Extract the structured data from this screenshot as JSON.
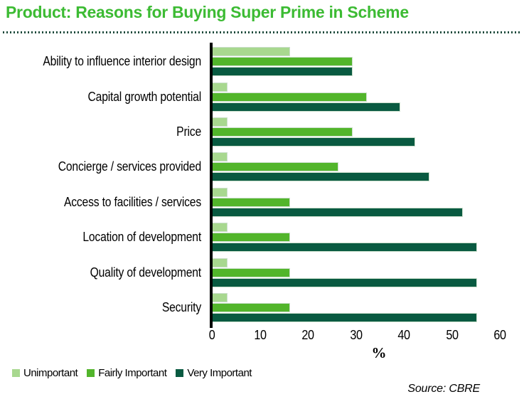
{
  "title": "Product: Reasons for Buying Super Prime in Scheme",
  "source": "Source: CBRE",
  "colors": {
    "title": "#3CBB33",
    "divider": "#1D4A3C",
    "axis": "#000000",
    "bar_border": "#CBDFCC"
  },
  "chart_data": {
    "type": "bar",
    "orientation": "horizontal",
    "title": "Product: Reasons for Buying Super Prime in Scheme",
    "categories": [
      "Ability to influence interior design",
      "Capital growth potential",
      "Price",
      "Concierge / services provided",
      "Access to facilities / services",
      "Location of development",
      "Quality of development",
      "Security"
    ],
    "series": [
      {
        "name": "Unimportant",
        "color": "#A8D88F",
        "values": [
          16,
          3,
          3,
          3,
          3,
          3,
          3,
          3
        ]
      },
      {
        "name": "Fairly Important",
        "color": "#52B52B",
        "values": [
          29,
          32,
          29,
          26,
          16,
          16,
          16,
          16
        ]
      },
      {
        "name": "Very Important",
        "color": "#095A41",
        "values": [
          29,
          39,
          42,
          45,
          52,
          55,
          55,
          55
        ]
      }
    ],
    "xlabel": "%",
    "xlim": [
      0,
      60
    ],
    "x_ticks": [
      0,
      10,
      20,
      30,
      40,
      50,
      60
    ],
    "grid": false,
    "legend_position": "bottom-left"
  }
}
